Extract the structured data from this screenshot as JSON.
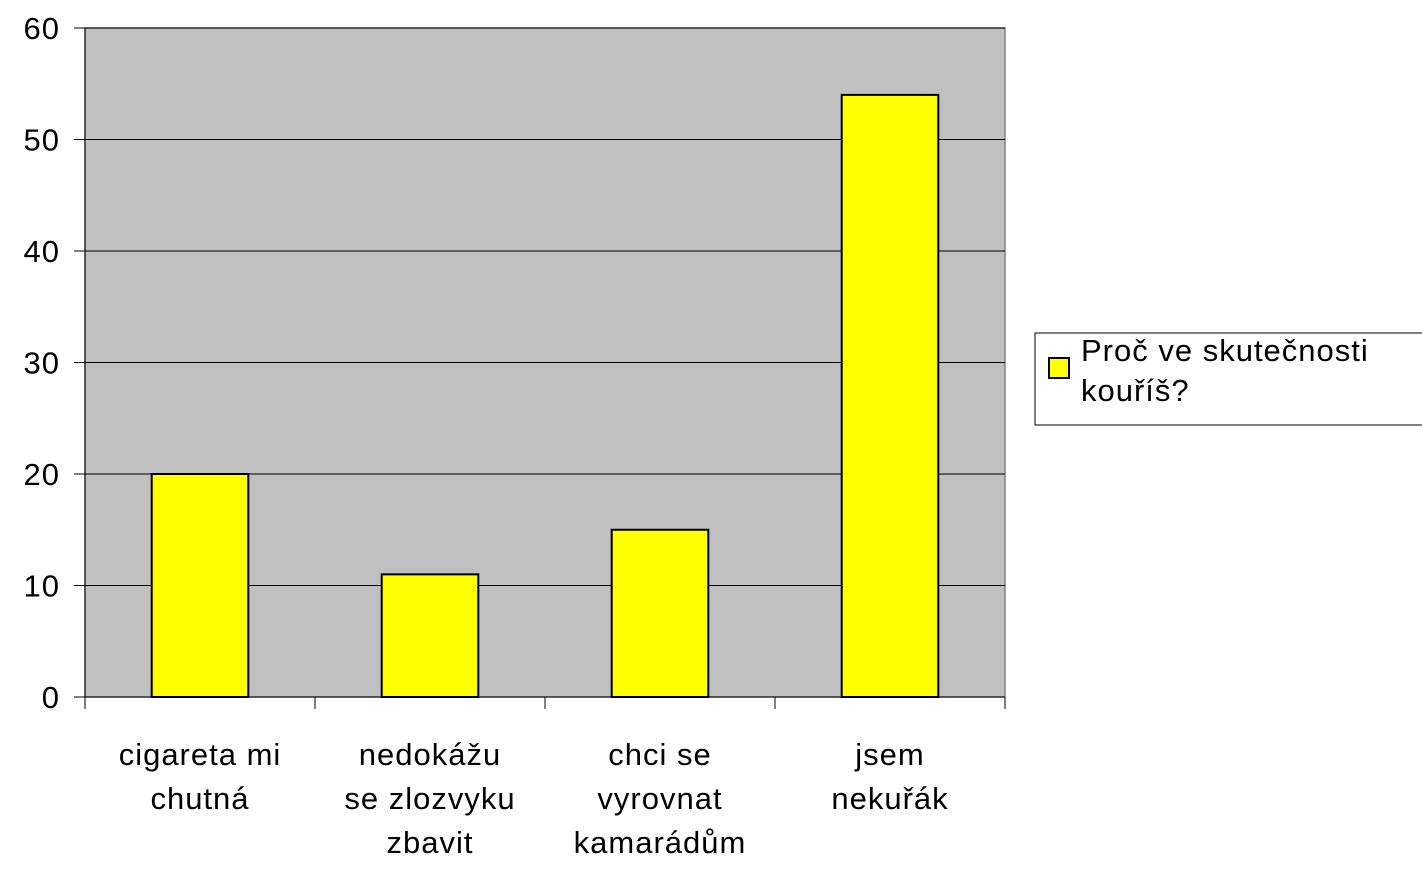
{
  "chart_data": {
    "type": "bar",
    "categories": [
      "cigareta mi chutná",
      "nedokážu se zlozvyku zbavit",
      "chci se vyrovnat kamarádům",
      "jsem nekuřák"
    ],
    "series": [
      {
        "name": "Proč ve skutečnosti kouříš?",
        "color": "#ffff00",
        "values": [
          20,
          11,
          15,
          54
        ]
      }
    ],
    "ylim": [
      0,
      60
    ],
    "yticks": [
      0,
      10,
      20,
      30,
      40,
      50,
      60
    ],
    "grid": true,
    "legend": "right"
  }
}
